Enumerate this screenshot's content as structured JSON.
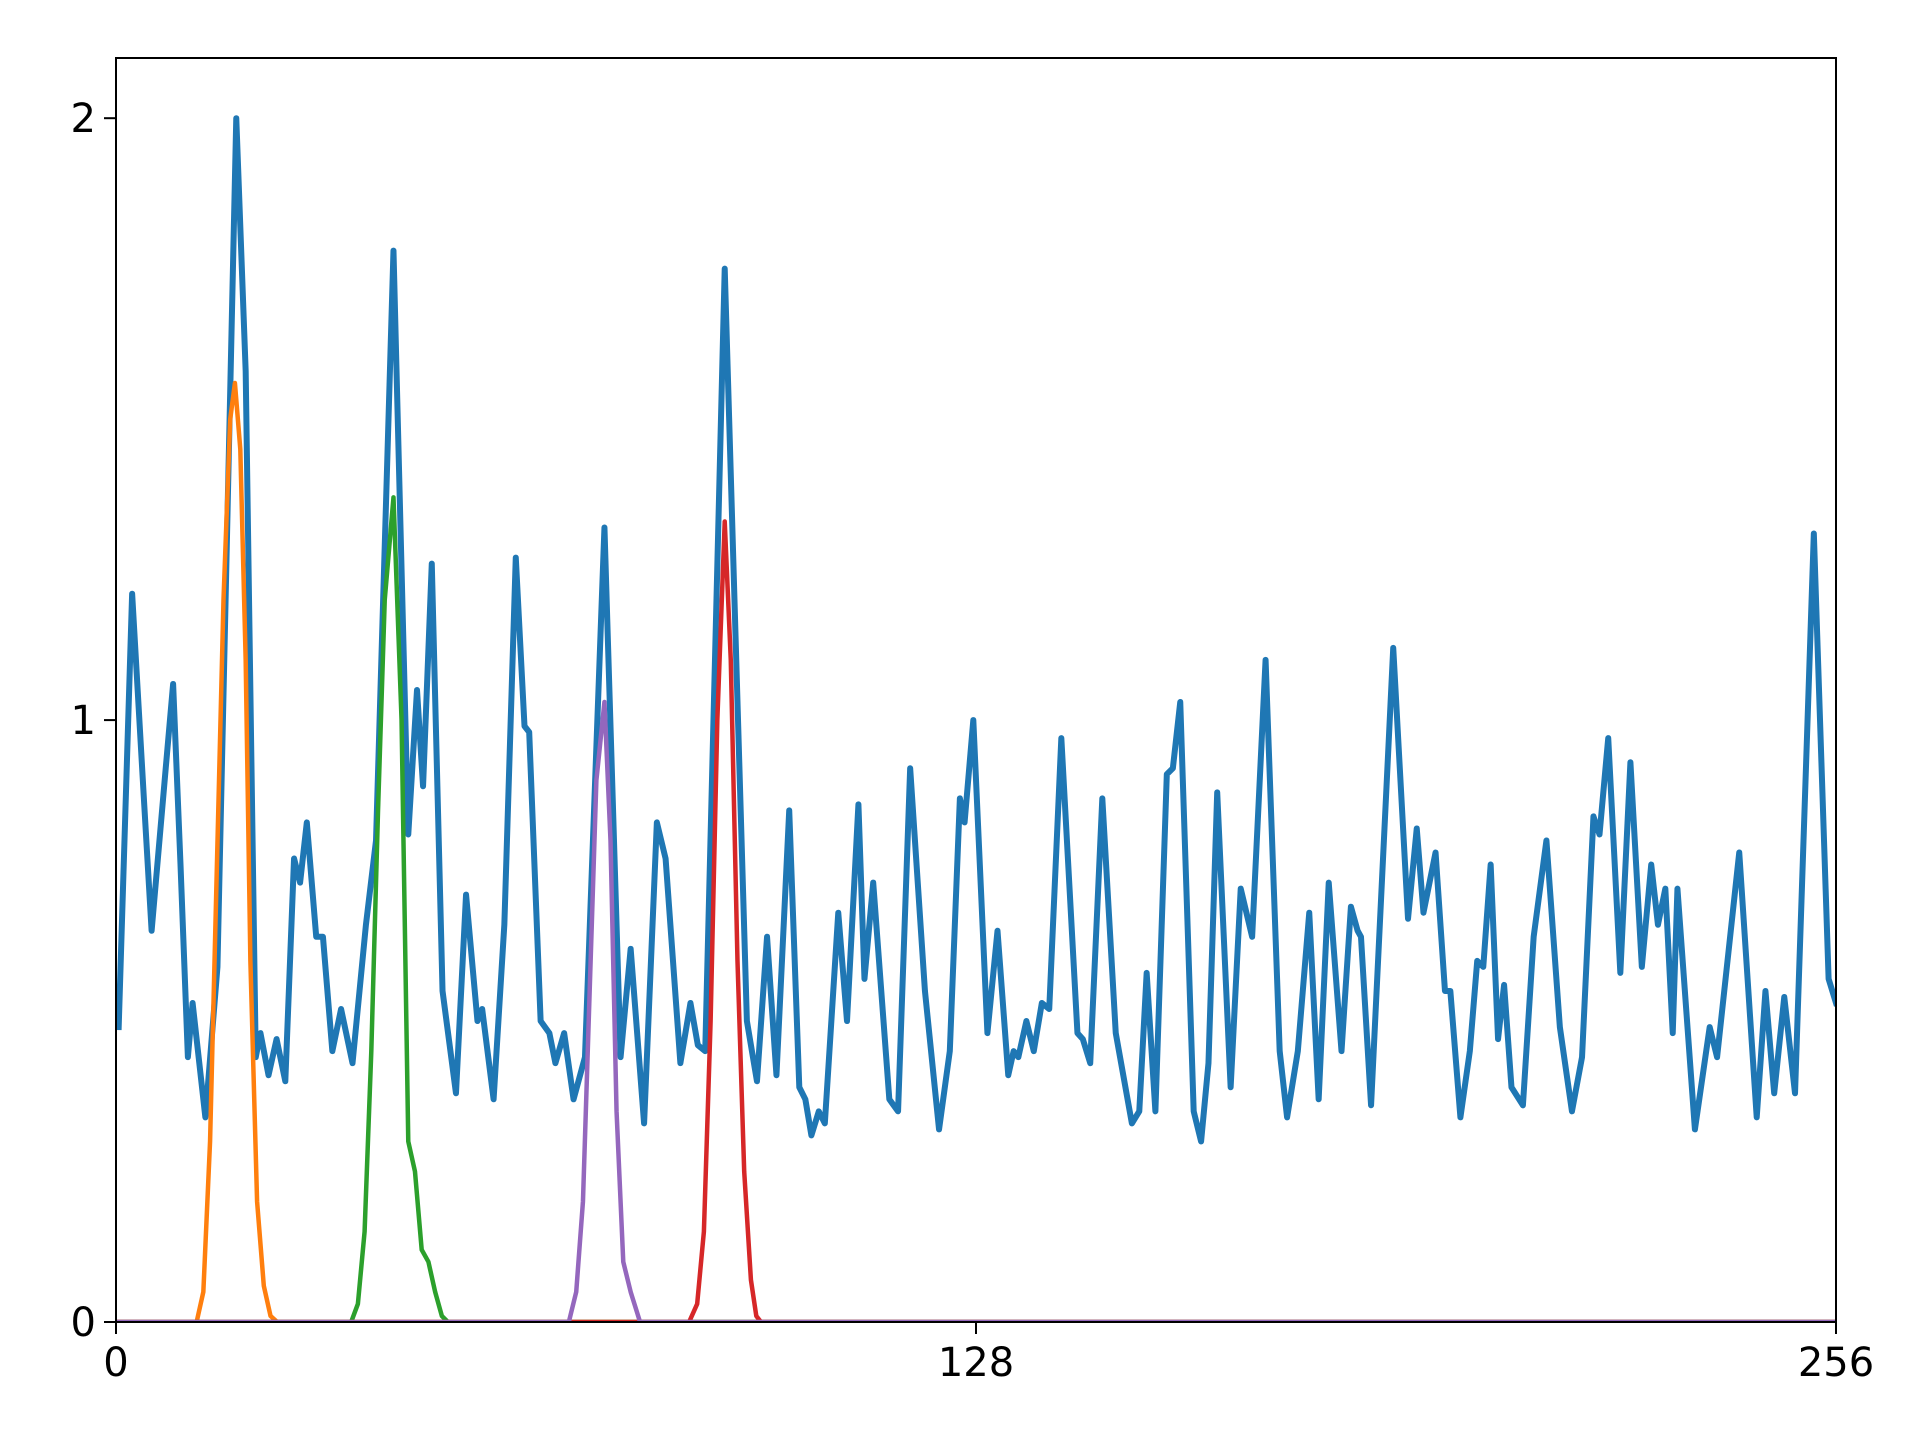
{
  "chart_data": {
    "type": "line",
    "xlim": [
      0,
      256
    ],
    "ylim": [
      0,
      2.1
    ],
    "xticks": [
      0,
      128,
      256
    ],
    "yticks": [
      0,
      1,
      2
    ],
    "series": [
      {
        "color": "#1f77b4",
        "x": [
          0.4,
          2.4,
          4.2,
          5.3,
          7.4,
          8.5,
          9.6,
          10.7,
          11.4,
          13.3,
          15.1,
          17.9,
          19.3,
          20.8,
          21.5,
          22.7,
          23.9,
          25.2,
          26.5,
          27.4,
          28.4,
          29.8,
          30.8,
          32.2,
          33.5,
          35.2,
          37.2,
          38.7,
          41.3,
          43.5,
          44.8,
          45.7,
          47.0,
          48.6,
          50.6,
          52.1,
          53.8,
          54.5,
          56.2,
          57.8,
          59.5,
          60.8,
          61.5,
          63.2,
          64.5,
          65.4,
          66.7,
          68.1,
          69.8,
          72.7,
          75.1,
          76.6,
          78.6,
          80.5,
          81.8,
          84.0,
          85.5,
          86.6,
          87.7,
          90.6,
          93.9,
          95.4,
          96.9,
          98.3,
          100.2,
          101.7,
          102.6,
          103.5,
          104.6,
          105.5,
          107.5,
          108.8,
          110.5,
          111.4,
          112.7,
          115.1,
          116.4,
          118.2,
          120.4,
          122.5,
          124.1,
          125.6,
          126.3,
          127.6,
          129.7,
          131.2,
          132.8,
          133.6,
          134.3,
          135.5,
          136.6,
          137.8,
          138.9,
          140.7,
          143.1,
          143.9,
          145.0,
          146.8,
          148.8,
          151.2,
          152.3,
          153.4,
          154.7,
          156.4,
          157.3,
          158.4,
          160.4,
          161.5,
          162.6,
          163.9,
          165.9,
          167.4,
          169.1,
          171.1,
          173.2,
          174.3,
          175.9,
          177.6,
          179.0,
          180.5,
          182.4,
          183.8,
          184.8,
          185.3,
          186.8,
          190.1,
          192.3,
          193.6,
          194.6,
          196.4,
          197.8,
          198.6,
          200.1,
          201.5,
          202.6,
          203.5,
          204.6,
          205.7,
          206.6,
          207.7,
          209.4,
          211.0,
          212.9,
          214.9,
          216.7,
          218.2,
          219.9,
          220.8,
          222.1,
          223.9,
          225.4,
          227.1,
          228.5,
          229.5,
          230.6,
          231.7,
          232.4,
          235.0,
          237.2,
          238.3,
          241.6,
          244.2,
          245.5,
          246.8,
          248.3,
          249.9,
          252.7,
          254.9,
          256
        ],
        "values": [
          0.49,
          1.21,
          0.86,
          0.65,
          0.92,
          1.06,
          0.76,
          0.44,
          0.53,
          0.34,
          0.59,
          2.0,
          1.58,
          0.44,
          0.48,
          0.41,
          0.47,
          0.4,
          0.77,
          0.73,
          0.83,
          0.64,
          0.64,
          0.45,
          0.52,
          0.43,
          0.66,
          0.8,
          1.78,
          0.81,
          1.05,
          0.89,
          1.26,
          0.55,
          0.38,
          0.71,
          0.5,
          0.52,
          0.37,
          0.66,
          1.27,
          0.99,
          0.98,
          0.5,
          0.48,
          0.43,
          0.48,
          0.37,
          0.44,
          1.32,
          0.44,
          0.62,
          0.33,
          0.83,
          0.77,
          0.43,
          0.53,
          0.46,
          0.45,
          1.75,
          0.5,
          0.4,
          0.64,
          0.41,
          0.85,
          0.39,
          0.37,
          0.31,
          0.35,
          0.33,
          0.68,
          0.5,
          0.86,
          0.57,
          0.73,
          0.37,
          0.35,
          0.92,
          0.55,
          0.32,
          0.45,
          0.87,
          0.83,
          1.0,
          0.48,
          0.65,
          0.41,
          0.45,
          0.44,
          0.5,
          0.45,
          0.53,
          0.52,
          0.97,
          0.48,
          0.47,
          0.43,
          0.87,
          0.48,
          0.33,
          0.35,
          0.58,
          0.35,
          0.91,
          0.92,
          1.03,
          0.35,
          0.3,
          0.43,
          0.88,
          0.39,
          0.72,
          0.64,
          1.1,
          0.45,
          0.34,
          0.45,
          0.68,
          0.37,
          0.73,
          0.45,
          0.69,
          0.65,
          0.64,
          0.36,
          1.12,
          0.67,
          0.82,
          0.68,
          0.78,
          0.55,
          0.55,
          0.34,
          0.45,
          0.6,
          0.59,
          0.76,
          0.47,
          0.56,
          0.39,
          0.36,
          0.64,
          0.8,
          0.49,
          0.35,
          0.44,
          0.84,
          0.81,
          0.97,
          0.58,
          0.93,
          0.59,
          0.76,
          0.66,
          0.72,
          0.48,
          0.72,
          0.32,
          0.49,
          0.44,
          0.78,
          0.34,
          0.55,
          0.38,
          0.54,
          0.38,
          1.31,
          0.57,
          0.53
        ]
      },
      {
        "color": "#ff7f0e",
        "x": [
          0,
          12,
          13,
          14,
          15,
          16,
          17,
          17.7,
          18.5,
          19.3,
          20,
          21,
          22,
          23,
          24,
          256
        ],
        "values": [
          0,
          0,
          0.05,
          0.3,
          0.75,
          1.2,
          1.5,
          1.56,
          1.45,
          1.1,
          0.6,
          0.2,
          0.06,
          0.01,
          0,
          0
        ]
      },
      {
        "color": "#2ca02c",
        "x": [
          0,
          35,
          36,
          37,
          38,
          39,
          40,
          41.3,
          42.5,
          43.5,
          44.5,
          45.5,
          46.5,
          47.5,
          48.5,
          49.4,
          256
        ],
        "values": [
          0,
          0,
          0.03,
          0.15,
          0.45,
          0.85,
          1.2,
          1.37,
          1.0,
          0.3,
          0.25,
          0.12,
          0.1,
          0.05,
          0.01,
          0,
          0
        ]
      },
      {
        "color": "#d62728",
        "x": [
          0,
          85.3,
          86.5,
          87.5,
          88.5,
          89.5,
          90.6,
          91.5,
          92.5,
          93.5,
          94.5,
          95.3,
          96,
          256
        ],
        "values": [
          0,
          0,
          0.03,
          0.15,
          0.5,
          1.0,
          1.33,
          1.1,
          0.6,
          0.25,
          0.07,
          0.01,
          0,
          0
        ]
      },
      {
        "color": "#9467bd",
        "x": [
          0,
          67.4,
          68.5,
          69.5,
          70.5,
          71.5,
          72.7,
          73.6,
          74.5,
          75.5,
          76.6,
          78,
          256
        ],
        "values": [
          0,
          0,
          0.05,
          0.2,
          0.55,
          0.9,
          1.03,
          0.8,
          0.35,
          0.1,
          0.05,
          0,
          0
        ]
      }
    ]
  }
}
